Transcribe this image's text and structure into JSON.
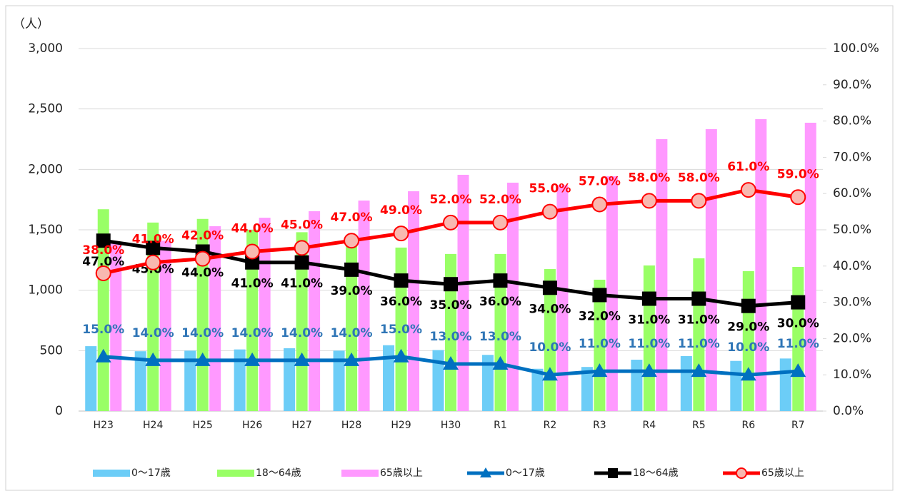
{
  "chart_data": {
    "type": "bar",
    "y_label": "（人）",
    "categories": [
      "H23",
      "H24",
      "H25",
      "H26",
      "H27",
      "H28",
      "H29",
      "H30",
      "R1",
      "R2",
      "R3",
      "R4",
      "R5",
      "R6",
      "R7"
    ],
    "ylim": [
      0,
      3000
    ],
    "yticks": [
      0,
      500,
      {
        "value": 1000,
        "label": "1,000"
      },
      {
        "value": 1500,
        "label": "1,500"
      },
      {
        "value": 2000,
        "label": "2,000"
      },
      {
        "value": 2500,
        "label": "2,500"
      },
      {
        "value": 3000,
        "label": "3,000"
      }
    ],
    "y2lim": [
      0,
      100
    ],
    "y2ticks": [
      {
        "value": 0,
        "label": "0.0%"
      },
      {
        "value": 10,
        "label": "10.0%"
      },
      {
        "value": 20,
        "label": "20.0%"
      },
      {
        "value": 30,
        "label": "30.0%"
      },
      {
        "value": 40,
        "label": "40.0%"
      },
      {
        "value": 50,
        "label": "50.0%"
      },
      {
        "value": 60,
        "label": "60.0%"
      },
      {
        "value": 70,
        "label": "70.0%"
      },
      {
        "value": 80,
        "label": "80.0%"
      },
      {
        "value": 90,
        "label": "90.0%"
      },
      {
        "value": 100,
        "label": "100.0%"
      }
    ],
    "grid": true,
    "legend": "bottom",
    "series": [
      {
        "name": "0～17歳",
        "type": "bar",
        "color": "#6ccdf7",
        "values": [
          537,
          495,
          500,
          510,
          520,
          500,
          545,
          505,
          465,
          350,
          365,
          425,
          455,
          415,
          435
        ]
      },
      {
        "name": "18～64歳",
        "type": "bar",
        "color": "#99ff66",
        "values": [
          1670,
          1560,
          1590,
          1500,
          1480,
          1395,
          1353,
          1300,
          1300,
          1175,
          1087,
          1205,
          1264,
          1158,
          1193
        ]
      },
      {
        "name": "65歳以上",
        "type": "bar",
        "color": "#ff99ff",
        "values": [
          1400,
          1410,
          1530,
          1600,
          1654,
          1742,
          1819,
          1955,
          1890,
          1870,
          1943,
          2250,
          2333,
          2416,
          2386
        ]
      },
      {
        "name": "0～17歳",
        "type": "line",
        "axis": "y2",
        "color": "#0070c0",
        "label_color": "#2e75b6",
        "values": [
          15,
          14,
          14,
          14,
          14,
          14,
          15,
          13,
          13,
          10,
          11,
          11,
          11,
          10,
          11
        ],
        "value_labels": [
          "15.0%",
          "14.0%",
          "14.0%",
          "14.0%",
          "14.0%",
          "14.0%",
          "15.0%",
          "13.0%",
          "13.0%",
          "10.0%",
          "11.0%",
          "11.0%",
          "11.0%",
          "10.0%",
          "11.0%"
        ]
      },
      {
        "name": "18～64歳",
        "type": "line",
        "axis": "y2",
        "color": "#000000",
        "label_color": "#000000",
        "values": [
          47,
          45,
          44,
          41,
          41,
          39,
          36,
          35,
          36,
          34,
          32,
          31,
          31,
          29,
          30
        ],
        "value_labels": [
          "47.0%",
          "45.0%",
          "44.0%",
          "41.0%",
          "41.0%",
          "39.0%",
          "36.0%",
          "35.0%",
          "36.0%",
          "34.0%",
          "32.0%",
          "31.0%",
          "31.0%",
          "29.0%",
          "30.0%"
        ]
      },
      {
        "name": "65歳以上",
        "type": "line",
        "axis": "y2",
        "color": "#ff0000",
        "label_color": "#ff0000",
        "values": [
          38,
          41,
          42,
          44,
          45,
          47,
          49,
          52,
          52,
          55,
          57,
          58,
          58,
          61,
          59
        ],
        "value_labels": [
          "38.0%",
          "41.0%",
          "42.0%",
          "44.0%",
          "45.0%",
          "47.0%",
          "49.0%",
          "52.0%",
          "52.0%",
          "55.0%",
          "57.0%",
          "58.0%",
          "58.0%",
          "61.0%",
          "59.0%"
        ]
      }
    ]
  }
}
